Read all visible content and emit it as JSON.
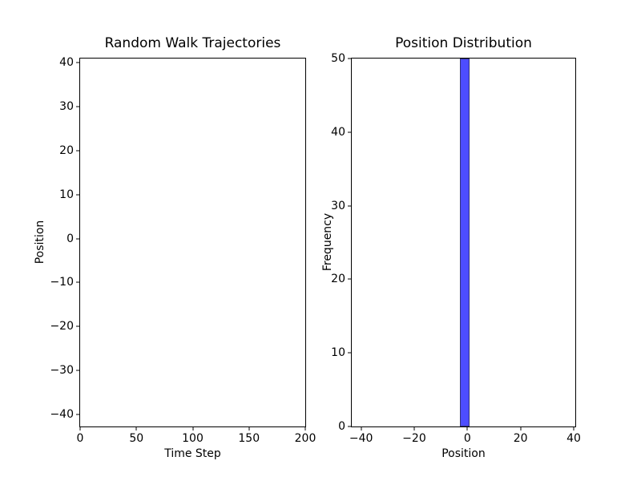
{
  "figure": {
    "background": "#ffffff",
    "text_color": "#000000"
  },
  "chart_data": [
    {
      "type": "line",
      "title": "Random Walk Trajectories",
      "xlabel": "Time Step",
      "ylabel": "Position",
      "xlim": [
        0,
        200
      ],
      "ylim": [
        -42.8,
        41
      ],
      "xticks": [
        0,
        50,
        100,
        150,
        200
      ],
      "yticks": [
        -40,
        -30,
        -20,
        -10,
        0,
        10,
        20,
        30,
        40
      ],
      "grid": false,
      "legend": null,
      "series": []
    },
    {
      "type": "bar",
      "title": "Position Distribution",
      "xlabel": "Position",
      "ylabel": "Frequency",
      "xlim": [
        -43.5,
        40.6
      ],
      "ylim": [
        0,
        50
      ],
      "xticks": [
        -40,
        -20,
        0,
        20,
        40
      ],
      "yticks": [
        0,
        10,
        20,
        30,
        40,
        50
      ],
      "grid": false,
      "legend": null,
      "bars": [
        {
          "x_left": -2.8,
          "x_right": 0.7,
          "height": 50
        }
      ],
      "bar_fill": "#4d4dff",
      "bar_edge": "#32327a"
    }
  ]
}
